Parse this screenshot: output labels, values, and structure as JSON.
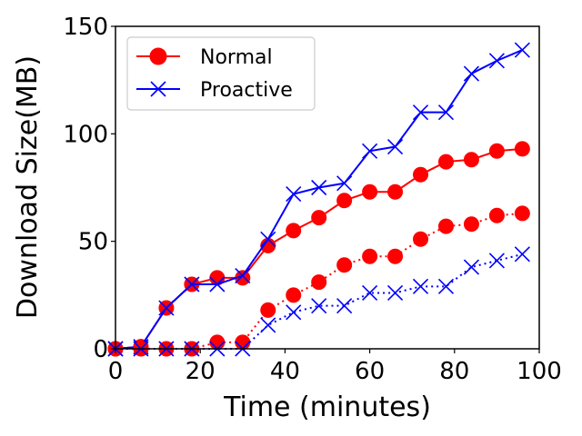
{
  "chart_data": {
    "type": "line",
    "title": "",
    "xlabel": "Time (minutes)",
    "ylabel": "Download Size(MB)",
    "xlim": [
      0,
      100
    ],
    "ylim": [
      0,
      150
    ],
    "xticks": [
      "0",
      "20",
      "40",
      "60",
      "80",
      "100"
    ],
    "yticks": [
      "0",
      "50",
      "100",
      "150"
    ],
    "grid": false,
    "legend_position": "top-left",
    "x": [
      0,
      6,
      12,
      18,
      24,
      30,
      36,
      42,
      48,
      54,
      60,
      66,
      72,
      78,
      84,
      90,
      96
    ],
    "series": [
      {
        "name": "Normal",
        "color": "#ff0000",
        "marker": "circle",
        "linestyle": "solid",
        "show_in_legend": true,
        "values": [
          0,
          1,
          19,
          30,
          33,
          33,
          48,
          55,
          61,
          69,
          73,
          73,
          81,
          87,
          88,
          92,
          93
        ]
      },
      {
        "name": "Proactive",
        "color": "#0000ff",
        "marker": "x",
        "linestyle": "solid",
        "show_in_legend": true,
        "values": [
          0,
          1,
          19,
          30,
          30,
          34,
          51,
          72,
          75,
          77,
          92,
          94,
          110,
          110,
          128,
          134,
          139
        ]
      },
      {
        "color": "#ff0000",
        "marker": "circle",
        "linestyle": "dotted",
        "show_in_legend": false,
        "values": [
          0,
          0,
          0,
          0,
          3,
          3,
          18,
          25,
          31,
          39,
          43,
          43,
          51,
          57,
          58,
          62,
          63
        ]
      },
      {
        "color": "#0000ff",
        "marker": "x",
        "linestyle": "dotted",
        "show_in_legend": false,
        "values": [
          0,
          0,
          0,
          0,
          0,
          0,
          11,
          17,
          20,
          20,
          26,
          26,
          29,
          29,
          38,
          41,
          44
        ]
      }
    ]
  }
}
